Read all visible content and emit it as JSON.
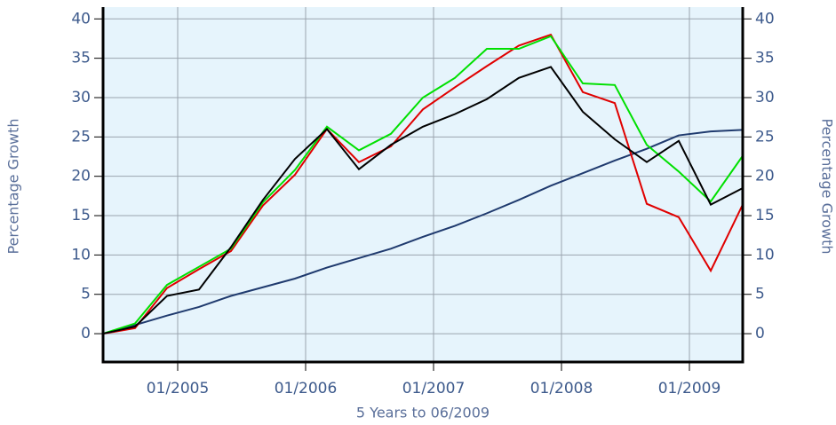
{
  "chart_data": {
    "type": "line",
    "x_label": "5 Years to 06/2009",
    "y_label": "Percentage Growth",
    "y2_label": "Percentage Growth",
    "x": [
      "06/2004",
      "09/2004",
      "12/2004",
      "03/2005",
      "06/2005",
      "09/2005",
      "12/2005",
      "03/2006",
      "06/2006",
      "09/2006",
      "12/2006",
      "03/2007",
      "06/2007",
      "09/2007",
      "12/2007",
      "03/2008",
      "06/2008",
      "09/2008",
      "12/2008",
      "03/2009",
      "06/2009"
    ],
    "series": [
      {
        "color": "#1f3a6e",
        "values": [
          0,
          1.1,
          2.3,
          3.4,
          4.8,
          5.9,
          7,
          8.4,
          9.6,
          10.8,
          12.3,
          13.7,
          15.3,
          17,
          18.8,
          20.4,
          22,
          23.5,
          25.2,
          25.7,
          25.9
        ]
      },
      {
        "color": "#e00000",
        "values": [
          0,
          0.7,
          5.8,
          8.2,
          10.5,
          16.3,
          20.2,
          26,
          21.8,
          23.8,
          28.5,
          31.3,
          34,
          36.6,
          38,
          30.7,
          29.3,
          16.5,
          14.8,
          8,
          16.4
        ]
      },
      {
        "color": "#00e000",
        "values": [
          0,
          1.3,
          6.2,
          8.5,
          10.8,
          16.7,
          20.8,
          26.3,
          23.3,
          25.4,
          30,
          32.5,
          36.2,
          36.2,
          37.8,
          31.8,
          31.6,
          24,
          20.6,
          16.8,
          22.6
        ]
      },
      {
        "color": "#000000",
        "values": [
          0,
          0.9,
          4.8,
          5.6,
          11,
          17,
          22.2,
          26,
          20.9,
          24,
          26.3,
          27.9,
          29.8,
          32.5,
          33.9,
          28.2,
          24.7,
          21.8,
          24.5,
          16.4,
          18.5
        ]
      }
    ],
    "xlim": [
      "06/2004",
      "06/2009"
    ],
    "xticks": [
      "01/2005",
      "01/2006",
      "01/2007",
      "01/2008",
      "01/2009"
    ],
    "ylim": [
      -3.6,
      41.5
    ],
    "yticks": [
      0,
      5,
      10,
      15,
      20,
      25,
      30,
      35,
      40
    ],
    "grid": true,
    "background": "#e6f4fc"
  }
}
